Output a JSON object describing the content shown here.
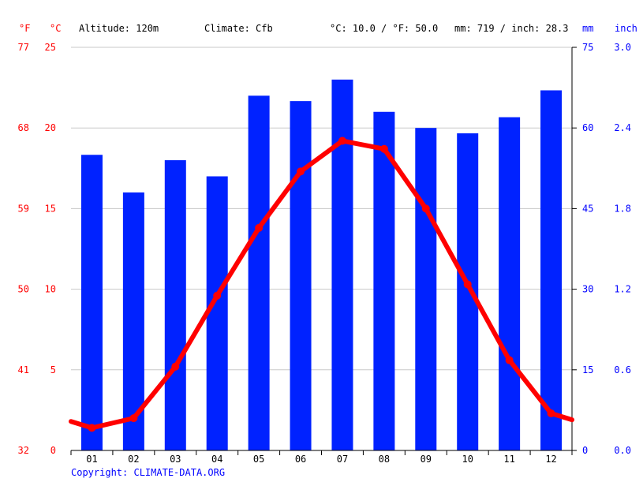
{
  "header": {
    "unit_f": "°F",
    "unit_c": "°C",
    "altitude": "Altitude: 120m",
    "climate": "Climate: Cfb",
    "avg_temp": "°C: 10.0 / °F: 50.0",
    "precip_total": "mm: 719 / inch: 28.3",
    "unit_mm": "mm",
    "unit_inch": "inch"
  },
  "copyright": "Copyright: CLIMATE-DATA.ORG",
  "colors": {
    "temp_line": "#ff0000",
    "precip_bar": "#0022ff",
    "grid": "#c8c8c8"
  },
  "chart_data": {
    "type": "bar",
    "categories": [
      "01",
      "02",
      "03",
      "04",
      "05",
      "06",
      "07",
      "08",
      "09",
      "10",
      "11",
      "12"
    ],
    "series": [
      {
        "type": "bar",
        "axis": "right",
        "values": [
          55,
          48,
          54,
          51,
          66,
          65,
          69,
          63,
          60,
          59,
          62,
          67
        ]
      },
      {
        "type": "line",
        "axis": "left",
        "values": [
          1.4,
          2.0,
          5.2,
          9.6,
          13.8,
          17.3,
          19.2,
          18.7,
          15.0,
          10.3,
          5.6,
          2.3
        ]
      }
    ],
    "temp_start_end": [
      1.8,
      1.9
    ],
    "yaxis_left_c": {
      "ticks": [
        0,
        5,
        10,
        15,
        20,
        25
      ],
      "labels": [
        "0",
        "5",
        "10",
        "15",
        "20",
        "25"
      ],
      "range": [
        0,
        25
      ]
    },
    "yaxis_left_f": {
      "labels": [
        "32",
        "41",
        "50",
        "59",
        "68",
        "77"
      ]
    },
    "yaxis_right_mm": {
      "ticks": [
        0,
        15,
        30,
        45,
        60,
        75
      ],
      "labels": [
        "0",
        "15",
        "30",
        "45",
        "60",
        "75"
      ],
      "range": [
        0,
        75
      ]
    },
    "yaxis_right_inch": {
      "labels": [
        "0.0",
        "0.6",
        "1.2",
        "1.8",
        "2.4",
        "3.0"
      ]
    },
    "grid": true
  }
}
